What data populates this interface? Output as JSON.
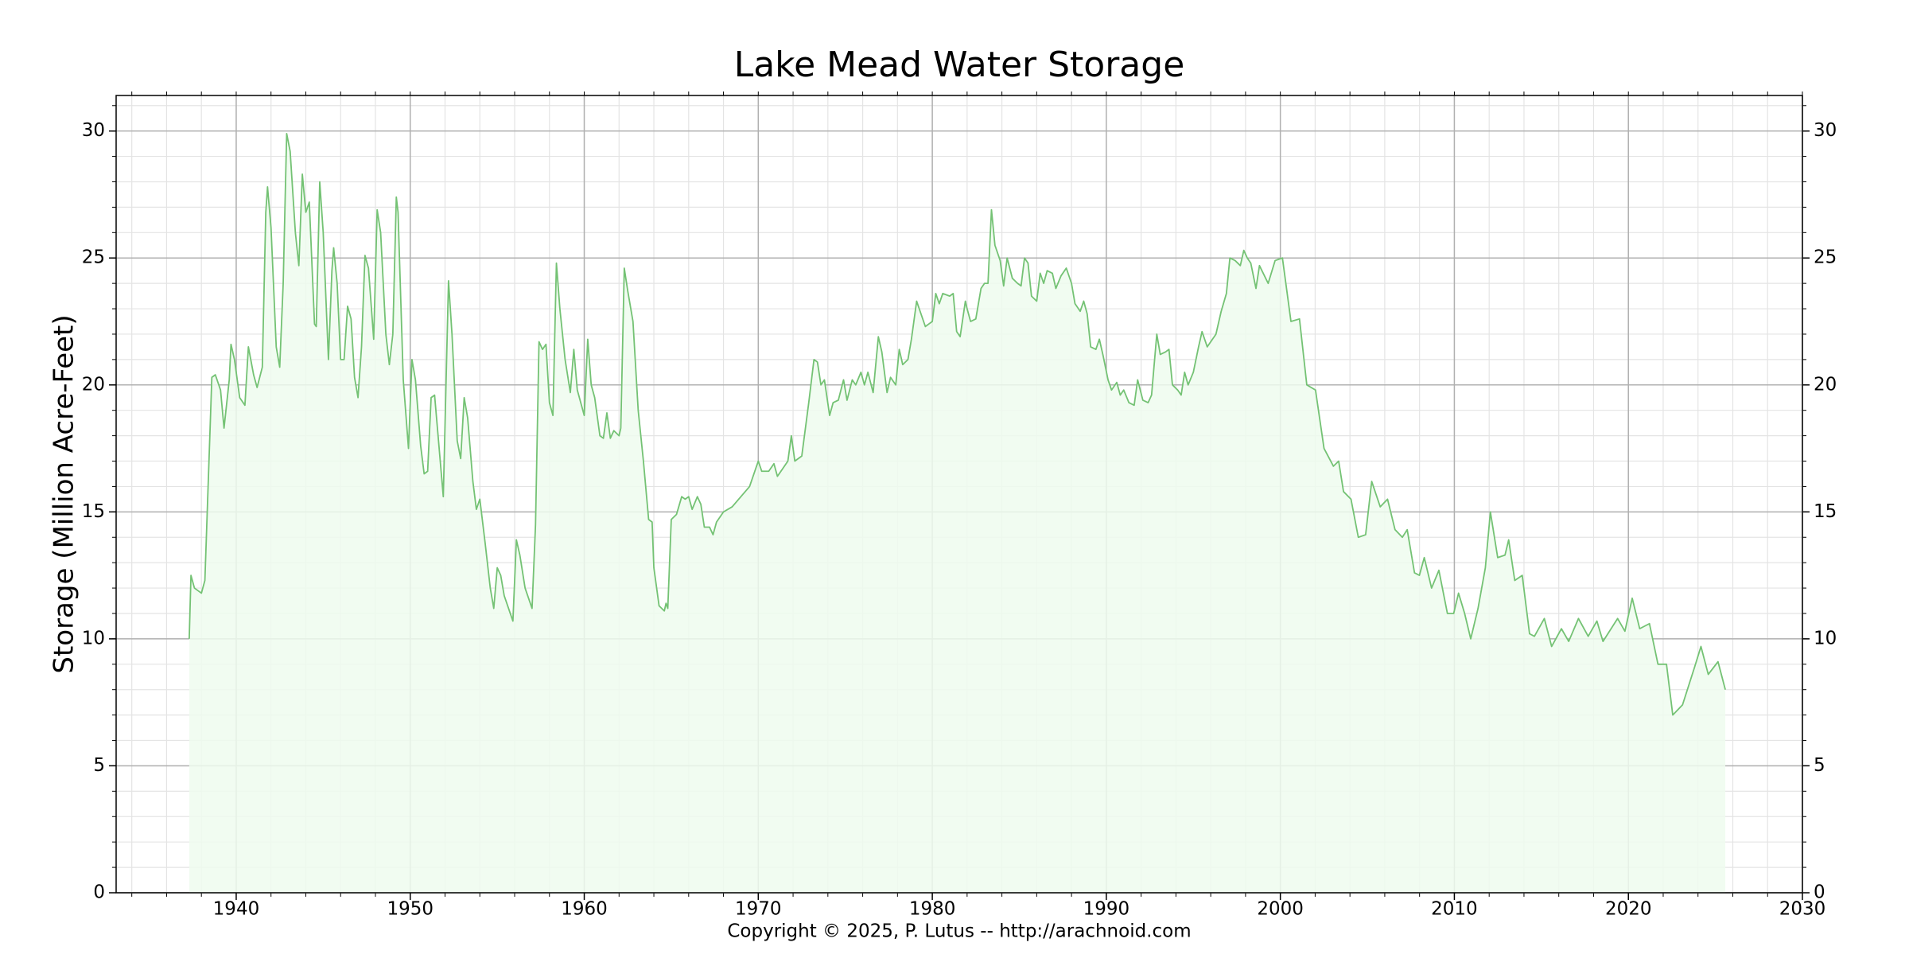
{
  "chart_data": {
    "type": "area-line",
    "title": "Lake Mead Water Storage",
    "y_label": "Storage (Million Acre-Feet)",
    "footer": "Copyright © 2025, P. Lutus -- http://arachnoid.com",
    "color": "#74c274",
    "fill_color": "#eefcee",
    "xlim": [
      1933.1,
      2030
    ],
    "xticks": [
      1940,
      1950,
      1960,
      1970,
      1980,
      1990,
      2000,
      2010,
      2020,
      2030
    ],
    "ylim": [
      0,
      31.4
    ],
    "yticks": [
      0,
      5,
      10,
      15,
      20,
      25,
      30
    ],
    "grid": true,
    "minor_grid": true,
    "minor_divisions": 5,
    "right_axis_labels": true,
    "x": [
      1937.3,
      1937.4,
      1937.6,
      1938.0,
      1938.2,
      1938.6,
      1938.8,
      1939.1,
      1939.3,
      1939.6,
      1939.7,
      1939.9,
      1940.2,
      1940.5,
      1940.7,
      1941.0,
      1941.2,
      1941.5,
      1941.7,
      1941.8,
      1942.0,
      1942.3,
      1942.5,
      1942.7,
      1942.9,
      1943.1,
      1943.4,
      1943.6,
      1943.8,
      1944.0,
      1944.2,
      1944.5,
      1944.6,
      1944.8,
      1945.0,
      1945.3,
      1945.5,
      1945.6,
      1945.8,
      1946.0,
      1946.2,
      1946.4,
      1946.6,
      1946.8,
      1947.0,
      1947.2,
      1947.4,
      1947.6,
      1947.9,
      1948.1,
      1948.3,
      1948.6,
      1948.8,
      1949.0,
      1949.2,
      1949.3,
      1949.6,
      1949.9,
      1950.1,
      1950.3,
      1950.6,
      1950.8,
      1951.0,
      1951.2,
      1951.4,
      1951.6,
      1951.9,
      1952.2,
      1952.4,
      1952.7,
      1952.9,
      1953.1,
      1953.3,
      1953.6,
      1953.8,
      1954.0,
      1954.3,
      1954.6,
      1954.8,
      1955.0,
      1955.2,
      1955.4,
      1955.7,
      1955.9,
      1956.1,
      1956.3,
      1956.6,
      1956.8,
      1957.0,
      1957.2,
      1957.4,
      1957.6,
      1957.8,
      1958.0,
      1958.2,
      1958.4,
      1958.6,
      1958.9,
      1959.2,
      1959.4,
      1959.6,
      1959.8,
      1960.0,
      1960.2,
      1960.4,
      1960.6,
      1960.9,
      1961.1,
      1961.3,
      1961.5,
      1961.7,
      1962.0,
      1962.1,
      1962.3,
      1962.5,
      1962.8,
      1963.1,
      1963.4,
      1963.7,
      1963.9,
      1964.0,
      1964.3,
      1964.6,
      1964.7,
      1964.8,
      1965.0,
      1965.3,
      1965.6,
      1965.8,
      1966.0,
      1966.2,
      1966.5,
      1966.7,
      1966.9,
      1967.2,
      1967.4,
      1967.6,
      1968.0,
      1968.5,
      1969.0,
      1969.5,
      1970.0,
      1970.2,
      1970.6,
      1970.9,
      1971.1,
      1971.4,
      1971.7,
      1971.9,
      1972.1,
      1972.5,
      1972.9,
      1973.2,
      1973.4,
      1973.6,
      1973.8,
      1974.1,
      1974.3,
      1974.6,
      1974.9,
      1975.1,
      1975.4,
      1975.6,
      1975.9,
      1976.1,
      1976.3,
      1976.6,
      1976.9,
      1977.1,
      1977.4,
      1977.6,
      1977.9,
      1978.1,
      1978.3,
      1978.6,
      1978.8,
      1979.1,
      1979.3,
      1979.6,
      1979.8,
      1980.0,
      1980.2,
      1980.4,
      1980.6,
      1981.0,
      1981.2,
      1981.4,
      1981.6,
      1981.9,
      1982.0,
      1982.2,
      1982.5,
      1982.8,
      1983.0,
      1983.2,
      1983.4,
      1983.6,
      1983.9,
      1984.1,
      1984.3,
      1984.6,
      1984.9,
      1985.1,
      1985.3,
      1985.5,
      1985.7,
      1986.0,
      1986.2,
      1986.4,
      1986.6,
      1986.9,
      1987.1,
      1987.4,
      1987.7,
      1988.0,
      1988.2,
      1988.5,
      1988.7,
      1988.9,
      1989.1,
      1989.4,
      1989.6,
      1989.8,
      1990.1,
      1990.3,
      1990.6,
      1990.8,
      1991.0,
      1991.3,
      1991.6,
      1991.8,
      1992.1,
      1992.4,
      1992.6,
      1992.9,
      1993.1,
      1993.4,
      1993.6,
      1993.8,
      1994.1,
      1994.3,
      1994.5,
      1994.7,
      1995.0,
      1995.3,
      1995.5,
      1995.8,
      1996.0,
      1996.3,
      1996.6,
      1996.9,
      1997.1,
      1997.4,
      1997.7,
      1997.9,
      1998.1,
      1998.3,
      1998.6,
      1998.8,
      1999.3,
      1999.7,
      2000.12,
      2000.61,
      2001.1,
      2001.52,
      2002.02,
      2002.51,
      2003.05,
      2003.35,
      2003.63,
      2004.06,
      2004.48,
      2004.9,
      2005.25,
      2005.74,
      2006.16,
      2006.59,
      2007.01,
      2007.29,
      2007.71,
      2007.99,
      2008.27,
      2008.69,
      2009.11,
      2009.6,
      2009.96,
      2010.24,
      2010.59,
      2010.94,
      2011.36,
      2011.78,
      2012.07,
      2012.49,
      2012.91,
      2013.12,
      2013.47,
      2013.9,
      2014.32,
      2014.6,
      2015.17,
      2015.59,
      2016.15,
      2016.57,
      2017.13,
      2017.69,
      2018.19,
      2018.54,
      2019.38,
      2019.8,
      2020.22,
      2020.65,
      2021.21,
      2021.7,
      2022.19,
      2022.55,
      2023.11,
      2023.81,
      2024.17,
      2024.59,
      2025.15,
      2025.57
    ],
    "values": [
      10.0,
      12.5,
      12.0,
      11.8,
      12.3,
      20.3,
      20.4,
      19.8,
      18.3,
      20.2,
      21.6,
      21.0,
      19.5,
      19.2,
      21.5,
      20.4,
      19.9,
      20.7,
      26.8,
      27.8,
      26.2,
      21.5,
      20.7,
      24.0,
      29.9,
      29.2,
      26.0,
      24.7,
      28.3,
      26.8,
      27.2,
      22.4,
      22.3,
      28.0,
      26.0,
      21.0,
      24.5,
      25.4,
      24.0,
      21.0,
      21.0,
      23.1,
      22.6,
      20.3,
      19.5,
      21.5,
      25.1,
      24.6,
      21.8,
      26.9,
      26.0,
      22.0,
      20.8,
      22.0,
      27.4,
      26.8,
      20.2,
      17.5,
      21.0,
      20.2,
      17.6,
      16.5,
      16.6,
      19.5,
      19.6,
      18.0,
      15.6,
      24.1,
      22.0,
      17.8,
      17.1,
      19.5,
      18.7,
      16.2,
      15.1,
      15.5,
      13.8,
      12.0,
      11.2,
      12.8,
      12.5,
      11.7,
      11.1,
      10.7,
      13.9,
      13.3,
      12.0,
      11.6,
      11.2,
      14.5,
      21.7,
      21.4,
      21.6,
      19.3,
      18.8,
      24.8,
      23.0,
      21.0,
      19.7,
      21.4,
      19.8,
      19.3,
      18.8,
      21.8,
      20.0,
      19.5,
      18.0,
      17.9,
      18.9,
      17.9,
      18.2,
      18.0,
      18.3,
      24.6,
      23.7,
      22.5,
      19.0,
      17.0,
      14.7,
      14.6,
      12.8,
      11.3,
      11.1,
      11.4,
      11.2,
      14.7,
      14.9,
      15.6,
      15.5,
      15.6,
      15.1,
      15.6,
      15.3,
      14.4,
      14.4,
      14.1,
      14.6,
      15.0,
      15.2,
      15.6,
      16.0,
      17.0,
      16.6,
      16.6,
      16.9,
      16.4,
      16.7,
      17.0,
      18.0,
      17.0,
      17.2,
      19.3,
      21.0,
      20.9,
      20.0,
      20.2,
      18.8,
      19.3,
      19.4,
      20.2,
      19.4,
      20.2,
      20.0,
      20.5,
      20.0,
      20.5,
      19.7,
      21.9,
      21.3,
      19.7,
      20.3,
      20.0,
      21.4,
      20.8,
      21.0,
      21.8,
      23.3,
      22.9,
      22.3,
      22.4,
      22.5,
      23.6,
      23.2,
      23.6,
      23.5,
      23.6,
      22.1,
      21.9,
      23.3,
      23.0,
      22.5,
      22.6,
      23.8,
      24.0,
      24.0,
      26.9,
      25.5,
      24.9,
      23.9,
      25.0,
      24.2,
      24.0,
      23.9,
      25.0,
      24.8,
      23.5,
      23.3,
      24.4,
      24.0,
      24.5,
      24.4,
      23.8,
      24.3,
      24.6,
      24.0,
      23.2,
      22.9,
      23.3,
      22.8,
      21.5,
      21.4,
      21.8,
      21.2,
      20.2,
      19.8,
      20.1,
      19.6,
      19.8,
      19.3,
      19.2,
      20.2,
      19.4,
      19.3,
      19.6,
      22.0,
      21.2,
      21.3,
      21.4,
      20.0,
      19.8,
      19.6,
      20.5,
      20.0,
      20.5,
      21.5,
      22.1,
      21.5,
      21.7,
      22.0,
      22.9,
      23.6,
      25.0,
      24.9,
      24.7,
      25.3,
      25.0,
      24.8,
      23.8,
      24.7,
      24.0,
      24.9,
      25.0,
      22.5,
      22.6,
      20.0,
      19.8,
      17.5,
      16.8,
      17.0,
      15.8,
      15.5,
      14.0,
      14.1,
      16.2,
      15.2,
      15.5,
      14.3,
      14.0,
      14.3,
      12.6,
      12.5,
      13.2,
      12.0,
      12.7,
      11.0,
      11.0,
      11.8,
      11.0,
      10.0,
      11.2,
      12.8,
      15.0,
      13.2,
      13.3,
      13.9,
      12.3,
      12.5,
      10.2,
      10.1,
      10.8,
      9.7,
      10.4,
      9.9,
      10.8,
      10.1,
      10.7,
      9.9,
      10.8,
      10.3,
      11.6,
      10.4,
      10.6,
      9.0,
      9.0,
      7.0,
      7.4,
      8.9,
      9.7,
      8.6,
      9.1,
      8.0
    ]
  }
}
